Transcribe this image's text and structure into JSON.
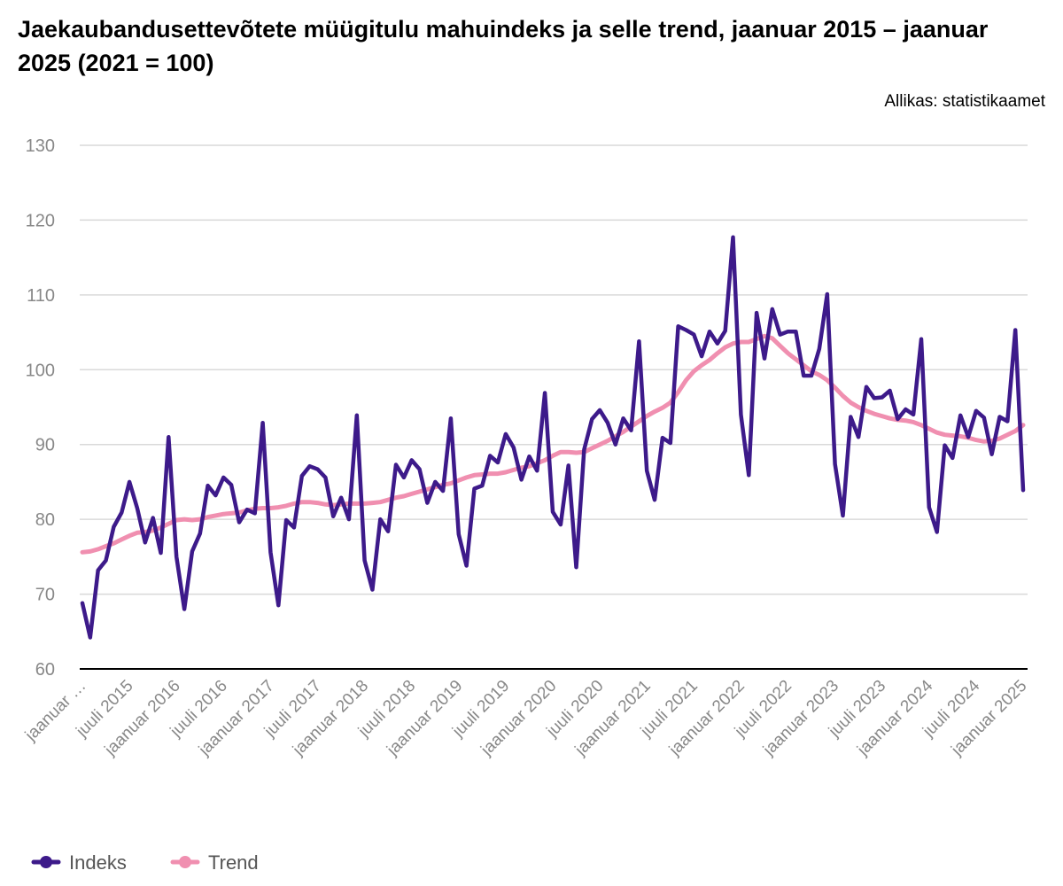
{
  "chart_data": {
    "type": "line",
    "title": "Jaekaubandusettevõtete müügitulu mahuindeks ja selle trend, jaanuar 2015 – jaanuar 2025 (2021 = 100)",
    "source": "Allikas: statistikaamet",
    "ylim": [
      60,
      130
    ],
    "yticks": [
      60,
      70,
      80,
      90,
      100,
      110,
      120,
      130
    ],
    "grid": true,
    "legend_position": "bottom-left",
    "x_tick_labels": [
      "jaanuar …",
      "juuli 2015",
      "jaanuar 2016",
      "juuli 2016",
      "jaanuar 2017",
      "juuli 2017",
      "jaanuar 2018",
      "juuli 2018",
      "jaanuar 2019",
      "juuli 2019",
      "jaanuar 2020",
      "juuli 2020",
      "jaanuar 2021",
      "juuli 2021",
      "jaanuar 2022",
      "juuli 2022",
      "jaanuar 2023",
      "juuli 2023",
      "jaanuar 2024",
      "juuli 2024",
      "jaanuar 2025"
    ],
    "x_start": "jaanuar 2015",
    "x_end": "jaanuar 2025",
    "series": [
      {
        "name": "Indeks",
        "color": "#3d1a8a",
        "values": [
          68.8,
          64.2,
          73.2,
          74.5,
          79.0,
          80.9,
          85.0,
          81.5,
          76.9,
          80.2,
          75.5,
          91.0,
          75.0,
          68.0,
          75.7,
          78.1,
          84.5,
          83.2,
          85.6,
          84.6,
          79.6,
          81.3,
          80.8,
          92.9,
          75.6,
          68.5,
          79.9,
          78.9,
          85.8,
          87.1,
          86.7,
          85.6,
          80.4,
          82.9,
          80.0,
          93.9,
          74.5,
          70.6,
          80.0,
          78.4,
          87.3,
          85.6,
          87.9,
          86.7,
          82.2,
          85.0,
          83.8,
          93.5,
          78.0,
          73.8,
          84.1,
          84.5,
          88.5,
          87.6,
          91.4,
          89.6,
          85.3,
          88.4,
          86.5,
          96.9,
          81.0,
          79.3,
          87.2,
          73.6,
          89.3,
          93.4,
          94.6,
          92.9,
          90.0,
          93.5,
          91.9,
          103.8,
          86.5,
          82.6,
          90.9,
          90.2,
          105.8,
          105.3,
          104.7,
          101.8,
          105.1,
          103.5,
          105.2,
          117.7,
          94.0,
          85.9,
          107.6,
          101.5,
          108.1,
          104.7,
          105.1,
          105.1,
          99.2,
          99.2,
          102.8,
          110.1,
          87.4,
          80.5,
          93.7,
          91.0,
          97.7,
          96.2,
          96.3,
          97.2,
          93.4,
          94.7,
          94.0,
          104.1,
          81.6,
          78.3,
          89.9,
          88.2,
          93.9,
          91.0,
          94.5,
          93.6,
          88.7,
          93.7,
          93.1,
          105.3,
          83.9
        ]
      },
      {
        "name": "Trend",
        "color": "#f08fb0",
        "values": [
          75.6,
          75.7,
          76.0,
          76.4,
          76.8,
          77.3,
          77.8,
          78.2,
          78.3,
          78.5,
          78.9,
          79.4,
          79.9,
          80.0,
          79.9,
          80.0,
          80.3,
          80.5,
          80.7,
          80.8,
          80.9,
          81.2,
          81.4,
          81.5,
          81.5,
          81.6,
          81.8,
          82.1,
          82.3,
          82.3,
          82.2,
          82.0,
          81.9,
          82.0,
          82.1,
          82.1,
          82.1,
          82.2,
          82.3,
          82.6,
          82.9,
          83.1,
          83.4,
          83.7,
          84.0,
          84.3,
          84.6,
          84.8,
          85.2,
          85.6,
          85.9,
          86.0,
          86.1,
          86.1,
          86.3,
          86.6,
          86.9,
          87.1,
          87.5,
          87.9,
          88.5,
          89.0,
          89.0,
          88.9,
          89.0,
          89.5,
          90.0,
          90.5,
          91.1,
          91.7,
          92.4,
          93.1,
          93.8,
          94.4,
          94.9,
          95.6,
          97.0,
          98.6,
          99.8,
          100.6,
          101.3,
          102.2,
          103.0,
          103.5,
          103.7,
          103.7,
          104.1,
          104.5,
          104.2,
          103.2,
          102.2,
          101.4,
          100.6,
          99.8,
          99.3,
          98.6,
          97.6,
          96.5,
          95.6,
          95.0,
          94.5,
          94.1,
          93.8,
          93.5,
          93.3,
          93.2,
          93.0,
          92.6,
          92.1,
          91.6,
          91.3,
          91.2,
          91.1,
          90.9,
          90.6,
          90.4,
          90.5,
          90.8,
          91.3,
          91.8,
          92.6
        ]
      }
    ]
  }
}
